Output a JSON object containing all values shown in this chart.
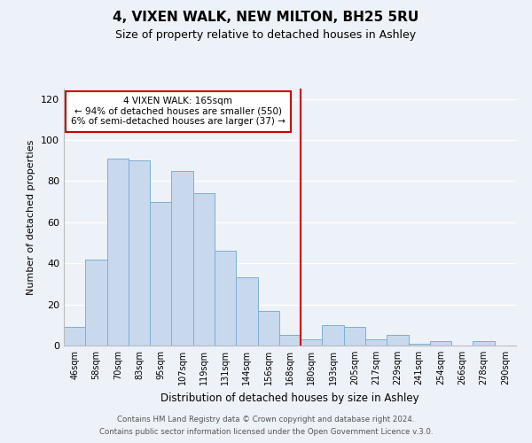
{
  "title": "4, VIXEN WALK, NEW MILTON, BH25 5RU",
  "subtitle": "Size of property relative to detached houses in Ashley",
  "xlabel": "Distribution of detached houses by size in Ashley",
  "ylabel": "Number of detached properties",
  "bar_labels": [
    "46sqm",
    "58sqm",
    "70sqm",
    "83sqm",
    "95sqm",
    "107sqm",
    "119sqm",
    "131sqm",
    "144sqm",
    "156sqm",
    "168sqm",
    "180sqm",
    "193sqm",
    "205sqm",
    "217sqm",
    "229sqm",
    "241sqm",
    "254sqm",
    "266sqm",
    "278sqm",
    "290sqm"
  ],
  "bar_values": [
    9,
    42,
    91,
    90,
    70,
    85,
    74,
    46,
    33,
    17,
    5,
    3,
    10,
    9,
    3,
    5,
    1,
    2,
    0,
    2,
    0
  ],
  "bar_color": "#c8d9ee",
  "bar_edge_color": "#7bafd4",
  "vline_color": "#cc0000",
  "annotation_title": "4 VIXEN WALK: 165sqm",
  "annotation_line1": "← 94% of detached houses are smaller (550)",
  "annotation_line2": "6% of semi-detached houses are larger (37) →",
  "annotation_box_color": "#ffffff",
  "annotation_box_edge": "#cc0000",
  "ylim": [
    0,
    125
  ],
  "yticks": [
    0,
    20,
    40,
    60,
    80,
    100,
    120
  ],
  "footer1": "Contains HM Land Registry data © Crown copyright and database right 2024.",
  "footer2": "Contains public sector information licensed under the Open Government Licence v.3.0.",
  "bg_color": "#edf1f8",
  "plot_bg_color": "#edf1f8",
  "title_fontsize": 11,
  "subtitle_fontsize": 9
}
